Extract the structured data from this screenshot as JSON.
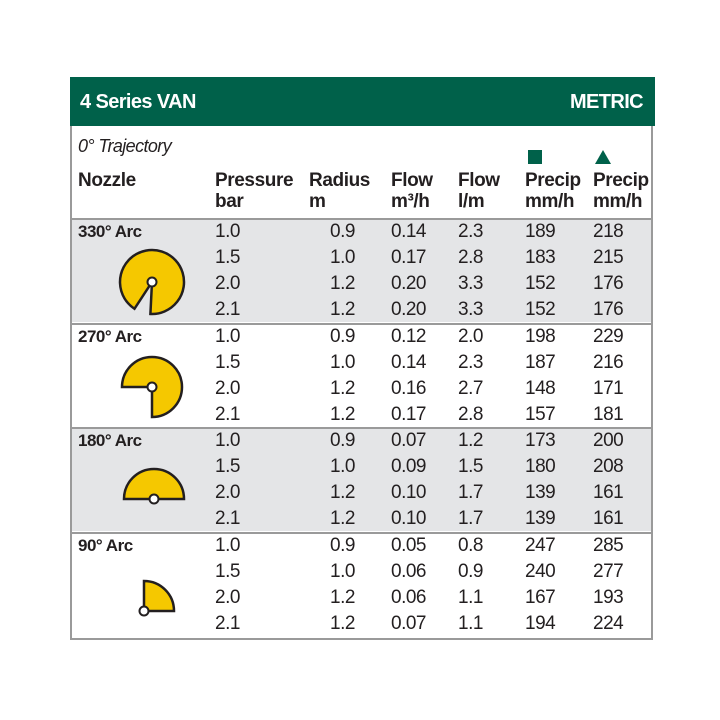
{
  "title": "4 Series VAN",
  "units": "METRIC",
  "trajectory": "0° Trajectory",
  "accent": "#00614a",
  "shape_fill": "#f5c800",
  "columns": [
    {
      "l1": "Nozzle",
      "l2": ""
    },
    {
      "l1": "Pressure",
      "l2": "bar"
    },
    {
      "l1": "Radius",
      "l2": "m"
    },
    {
      "l1": "Flow",
      "l2": "m³/h"
    },
    {
      "l1": "Flow",
      "l2": "l/m"
    },
    {
      "l1": "Precip",
      "l2": "mm/h",
      "marker": "square-icon"
    },
    {
      "l1": "Precip",
      "l2": "mm/h",
      "marker": "triangle-icon"
    }
  ],
  "groups": [
    {
      "arc": "330° Arc",
      "icon": "arc-330-icon",
      "rows": [
        [
          "1.0",
          "0.9",
          "0.14",
          "2.3",
          "189",
          "218"
        ],
        [
          "1.5",
          "1.0",
          "0.17",
          "2.8",
          "183",
          "215"
        ],
        [
          "2.0",
          "1.2",
          "0.20",
          "3.3",
          "152",
          "176"
        ],
        [
          "2.1",
          "1.2",
          "0.20",
          "3.3",
          "152",
          "176"
        ]
      ]
    },
    {
      "arc": "270° Arc",
      "icon": "arc-270-icon",
      "rows": [
        [
          "1.0",
          "0.9",
          "0.12",
          "2.0",
          "198",
          "229"
        ],
        [
          "1.5",
          "1.0",
          "0.14",
          "2.3",
          "187",
          "216"
        ],
        [
          "2.0",
          "1.2",
          "0.16",
          "2.7",
          "148",
          "171"
        ],
        [
          "2.1",
          "1.2",
          "0.17",
          "2.8",
          "157",
          "181"
        ]
      ]
    },
    {
      "arc": "180° Arc",
      "icon": "arc-180-icon",
      "rows": [
        [
          "1.0",
          "0.9",
          "0.07",
          "1.2",
          "173",
          "200"
        ],
        [
          "1.5",
          "1.0",
          "0.09",
          "1.5",
          "180",
          "208"
        ],
        [
          "2.0",
          "1.2",
          "0.10",
          "1.7",
          "139",
          "161"
        ],
        [
          "2.1",
          "1.2",
          "0.10",
          "1.7",
          "139",
          "161"
        ]
      ]
    },
    {
      "arc": "90° Arc",
      "icon": "arc-90-icon",
      "rows": [
        [
          "1.0",
          "0.9",
          "0.05",
          "0.8",
          "247",
          "285"
        ],
        [
          "1.5",
          "1.0",
          "0.06",
          "0.9",
          "240",
          "277"
        ],
        [
          "2.0",
          "1.2",
          "0.06",
          "1.1",
          "167",
          "193"
        ],
        [
          "2.1",
          "1.2",
          "0.07",
          "1.1",
          "194",
          "224"
        ]
      ]
    }
  ]
}
